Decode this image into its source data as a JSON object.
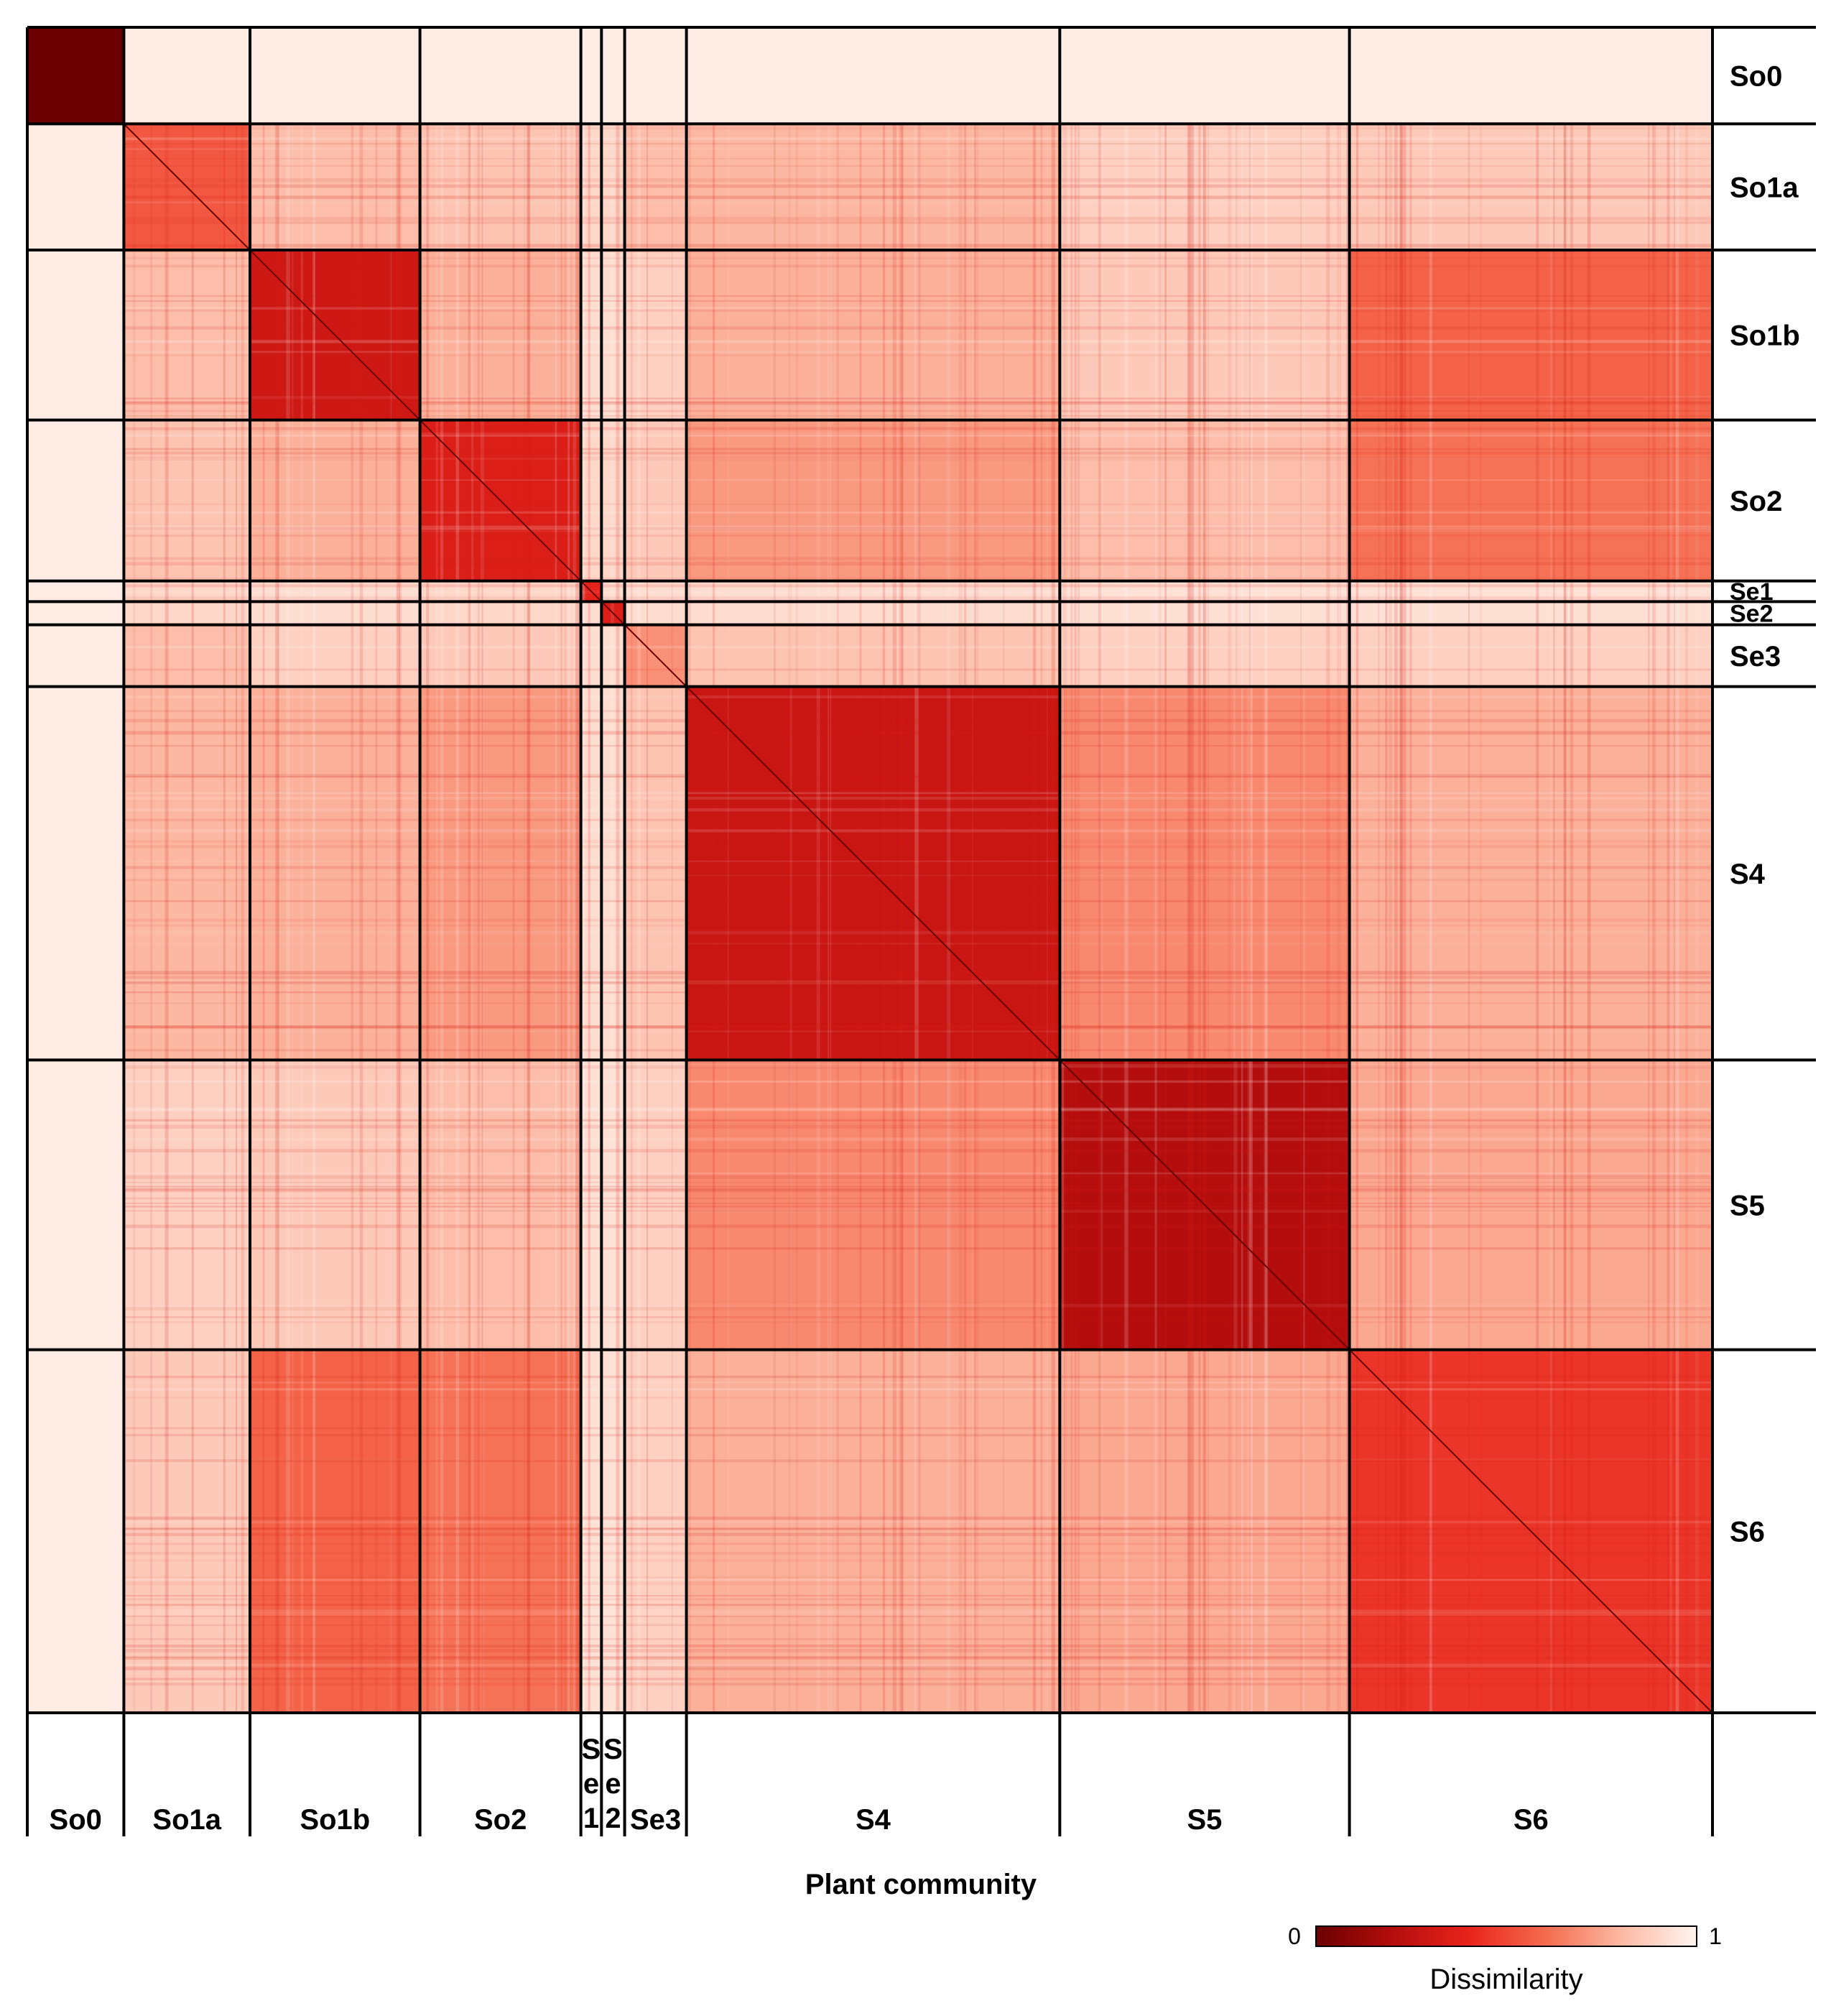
{
  "chart_data": {
    "type": "heatmap",
    "title": "",
    "xlabel": "Plant community",
    "ylabel": "",
    "groups": [
      "So0",
      "So1a",
      "So1b",
      "So2",
      "Se1",
      "Se2",
      "Se3",
      "S4",
      "S5",
      "S6"
    ],
    "group_sizes": [
      75,
      98,
      132,
      125,
      16,
      18,
      48,
      290,
      225,
      282
    ],
    "x_tick_labels": [
      "So0",
      "So1a",
      "So1b",
      "So2",
      "Se1",
      "Se2",
      "Se3",
      "S4",
      "S5",
      "S6"
    ],
    "y_tick_labels": [
      "So0",
      "So1a",
      "So1b",
      "So2",
      "Se1",
      "Se2",
      "Se3",
      "S4",
      "S5",
      "S6"
    ],
    "block_mean_dissimilarity": [
      [
        0.0,
        0.97,
        0.97,
        0.97,
        0.97,
        0.97,
        0.97,
        0.97,
        0.97,
        0.97
      ],
      [
        0.97,
        0.55,
        0.82,
        0.84,
        0.9,
        0.9,
        0.82,
        0.8,
        0.88,
        0.86
      ],
      [
        0.97,
        0.82,
        0.3,
        0.78,
        0.92,
        0.92,
        0.88,
        0.78,
        0.86,
        0.58
      ],
      [
        0.97,
        0.84,
        0.78,
        0.35,
        0.9,
        0.9,
        0.86,
        0.72,
        0.82,
        0.62
      ],
      [
        0.97,
        0.9,
        0.92,
        0.9,
        0.4,
        0.92,
        0.92,
        0.92,
        0.93,
        0.93
      ],
      [
        0.97,
        0.9,
        0.92,
        0.9,
        0.92,
        0.35,
        0.92,
        0.92,
        0.93,
        0.93
      ],
      [
        0.97,
        0.82,
        0.88,
        0.86,
        0.92,
        0.92,
        0.7,
        0.84,
        0.88,
        0.88
      ],
      [
        0.97,
        0.8,
        0.78,
        0.72,
        0.92,
        0.92,
        0.84,
        0.28,
        0.68,
        0.78
      ],
      [
        0.97,
        0.88,
        0.86,
        0.82,
        0.93,
        0.93,
        0.88,
        0.68,
        0.2,
        0.76
      ],
      [
        0.97,
        0.86,
        0.58,
        0.62,
        0.93,
        0.93,
        0.88,
        0.78,
        0.76,
        0.45
      ]
    ],
    "colorbar": {
      "title": "Dissimilarity",
      "min_label": "0",
      "max_label": "1",
      "vmin": 0,
      "vmax": 1,
      "colors": [
        "#6b0000",
        "#b40d0d",
        "#e8231b",
        "#f56a4d",
        "#fcb8a2",
        "#fff5f0"
      ]
    }
  }
}
